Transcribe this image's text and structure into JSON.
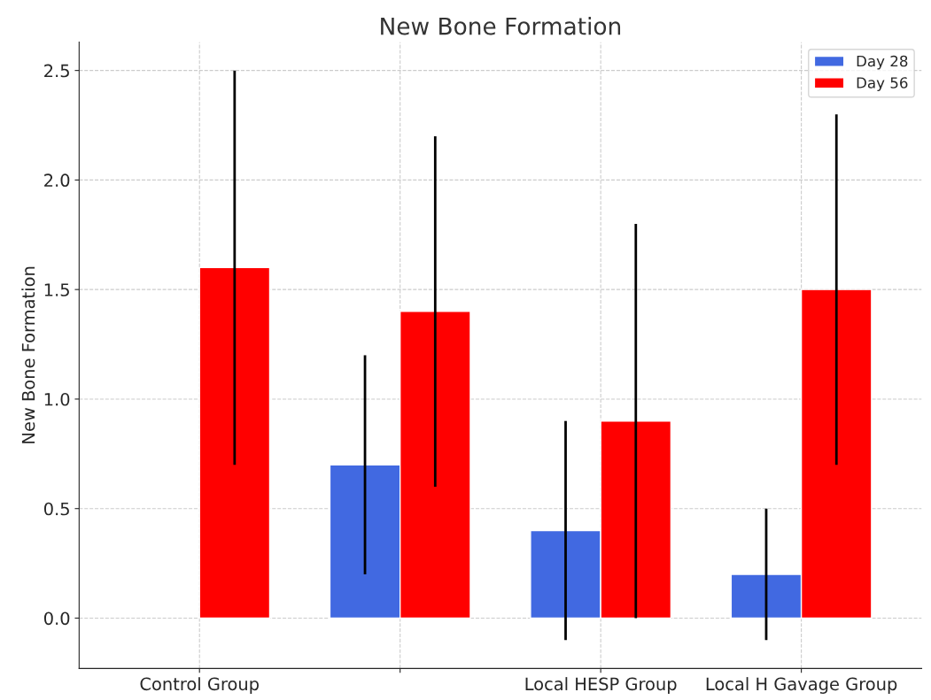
{
  "chart_data": {
    "type": "bar",
    "title": "New Bone Formation",
    "ylabel": "New Bone Formation",
    "categories": [
      "Control Group",
      null,
      "Local HESP Group",
      "Local H Gavage Group"
    ],
    "series": [
      {
        "name": "Day 28",
        "color": "#4169e1",
        "values": [
          null,
          0.7,
          0.4,
          0.2
        ],
        "errors": [
          null,
          0.5,
          0.5,
          0.3
        ]
      },
      {
        "name": "Day 56",
        "color": "#ff0000",
        "values": [
          1.6,
          1.4,
          0.9,
          1.5
        ],
        "errors": [
          0.9,
          0.8,
          0.9,
          0.8
        ]
      }
    ],
    "ylim": [
      -0.23,
      2.63
    ],
    "yticks": [
      {
        "value": 0,
        "label": "0.0"
      },
      0.5,
      {
        "value": 1,
        "label": "1.0"
      },
      1.5,
      {
        "value": 2,
        "label": "2.0"
      },
      2.5
    ],
    "grid": true,
    "legend": "top right"
  }
}
